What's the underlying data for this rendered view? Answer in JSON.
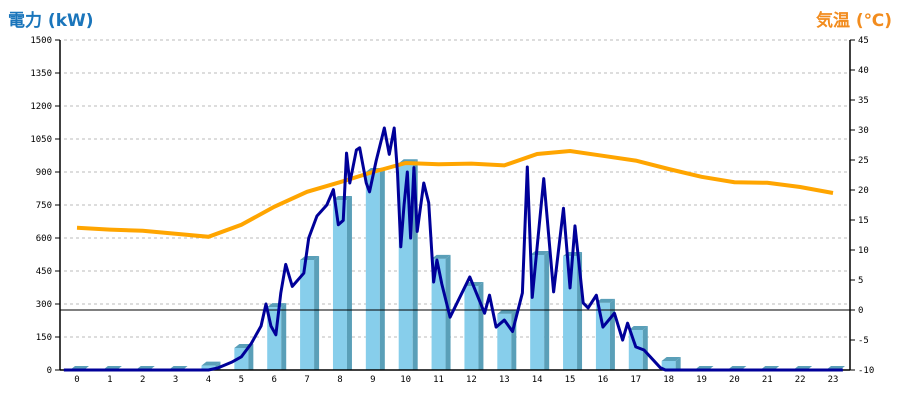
{
  "chart_data": {
    "type": "bar+line",
    "title_left": "電力 (kW)",
    "title_right": "気温 (℃)",
    "colors": {
      "title_left": "#1a75bb",
      "title_right": "#f28c1e",
      "bar": "#87ceeb",
      "bar_side": "#5a9fb8",
      "power_line": "#000099",
      "temp_line": "#ffa500"
    },
    "x": {
      "categories": [
        "0",
        "1",
        "2",
        "3",
        "4",
        "5",
        "6",
        "7",
        "8",
        "9",
        "10",
        "11",
        "12",
        "13",
        "14",
        "15",
        "16",
        "17",
        "18",
        "19",
        "20",
        "21",
        "22",
        "23"
      ]
    },
    "y_left": {
      "range": [
        0,
        1500
      ],
      "ticks": [
        "0",
        "150",
        "300",
        "450",
        "600",
        "750",
        "900",
        "1050",
        "1200",
        "1350",
        "1500"
      ]
    },
    "y_right": {
      "range": [
        -10,
        45
      ],
      "ticks": [
        "-10",
        "-5",
        "0",
        "5",
        "10",
        "15",
        "20",
        "25",
        "30",
        "35",
        "40",
        "45"
      ]
    },
    "grid": true,
    "reference_line_temp": 0,
    "series": [
      {
        "kind": "bar",
        "axis": "left",
        "values": [
          0,
          0,
          0,
          0,
          20,
          100,
          286,
          500,
          773,
          900,
          940,
          505,
          382,
          255,
          523,
          518,
          305,
          182,
          41,
          0,
          0,
          0,
          0,
          0
        ]
      },
      {
        "kind": "line",
        "axis": "left",
        "points": [
          [
            -0.4,
            0
          ],
          [
            4,
            0
          ],
          [
            4.3,
            10
          ],
          [
            4.7,
            35
          ],
          [
            5,
            60
          ],
          [
            5.3,
            120
          ],
          [
            5.6,
            200
          ],
          [
            5.75,
            300
          ],
          [
            5.9,
            200
          ],
          [
            6.05,
            160
          ],
          [
            6.2,
            350
          ],
          [
            6.35,
            480
          ],
          [
            6.55,
            380
          ],
          [
            6.9,
            440
          ],
          [
            7.05,
            600
          ],
          [
            7.3,
            700
          ],
          [
            7.6,
            750
          ],
          [
            7.8,
            820
          ],
          [
            7.95,
            660
          ],
          [
            8.1,
            680
          ],
          [
            8.2,
            986
          ],
          [
            8.3,
            850
          ],
          [
            8.5,
            1000
          ],
          [
            8.6,
            1010
          ],
          [
            8.8,
            850
          ],
          [
            8.9,
            810
          ],
          [
            9.1,
            950
          ],
          [
            9.35,
            1100
          ],
          [
            9.5,
            980
          ],
          [
            9.65,
            1100
          ],
          [
            9.75,
            900
          ],
          [
            9.85,
            560
          ],
          [
            9.95,
            750
          ],
          [
            10.05,
            900
          ],
          [
            10.15,
            600
          ],
          [
            10.25,
            920
          ],
          [
            10.35,
            630
          ],
          [
            10.55,
            850
          ],
          [
            10.7,
            760
          ],
          [
            10.85,
            400
          ],
          [
            10.95,
            500
          ],
          [
            11.1,
            390
          ],
          [
            11.35,
            240
          ],
          [
            11.95,
            423
          ],
          [
            12.4,
            258
          ],
          [
            12.55,
            340
          ],
          [
            12.75,
            195
          ],
          [
            13,
            227
          ],
          [
            13.25,
            175
          ],
          [
            13.55,
            350
          ],
          [
            13.7,
            923
          ],
          [
            13.85,
            330
          ],
          [
            14.2,
            870
          ],
          [
            14.5,
            355
          ],
          [
            14.8,
            735
          ],
          [
            15,
            373
          ],
          [
            15.15,
            655
          ],
          [
            15.4,
            305
          ],
          [
            15.55,
            282
          ],
          [
            15.8,
            340
          ],
          [
            16,
            195
          ],
          [
            16.35,
            258
          ],
          [
            16.6,
            136
          ],
          [
            16.75,
            213
          ],
          [
            17,
            105
          ],
          [
            17.25,
            91
          ],
          [
            17.75,
            10
          ],
          [
            17.9,
            0
          ],
          [
            23.3,
            0
          ]
        ]
      },
      {
        "kind": "line",
        "axis": "right",
        "values": [
          13.7,
          13.4,
          13.2,
          12.7,
          12.2,
          14.2,
          17.2,
          19.7,
          21.3,
          23,
          24.5,
          24.3,
          24.4,
          24.1,
          26,
          26.5,
          25.7,
          24.9,
          23.5,
          22.2,
          21.3,
          21.2,
          20.5,
          19.5
        ]
      }
    ]
  }
}
